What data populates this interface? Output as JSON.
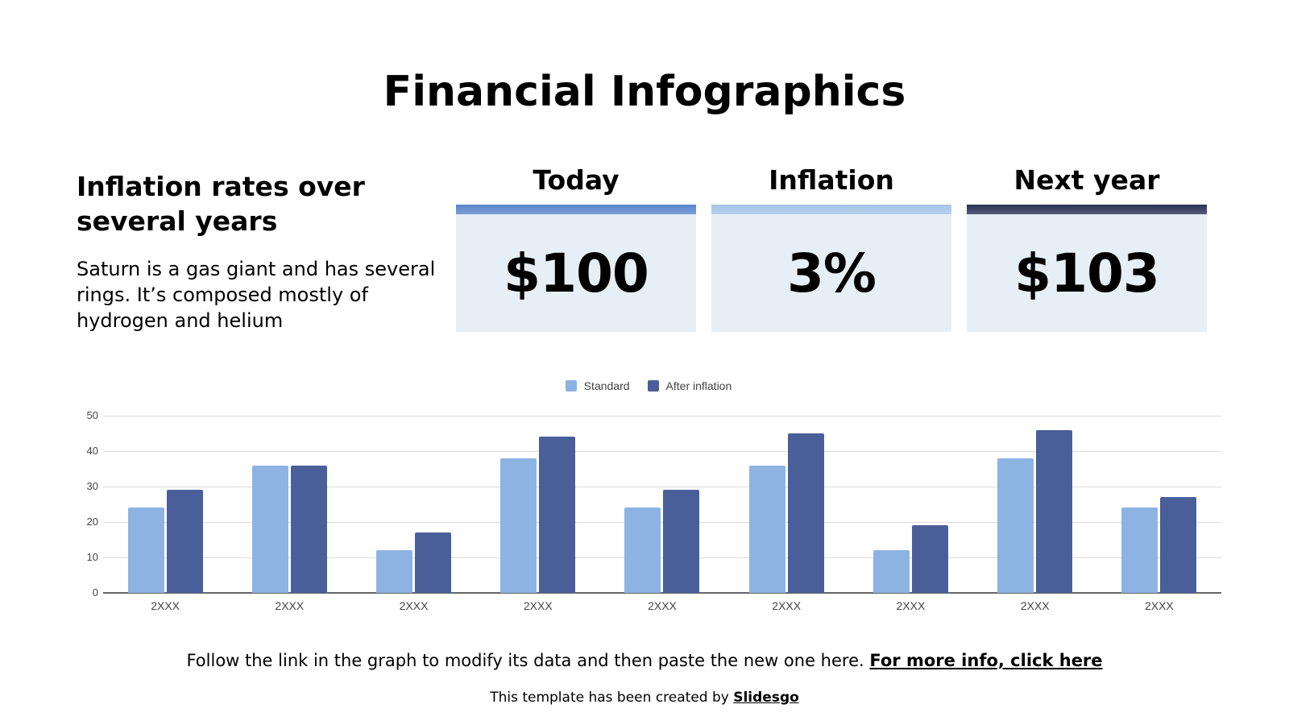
{
  "title": "Financial Infographics",
  "intro": {
    "heading": "Inflation rates over several years",
    "description": "Saturn is a gas giant and has several rings. It’s composed mostly of hydrogen and helium"
  },
  "cards": [
    {
      "label": "Today",
      "value": "$100",
      "bar_color": "#5b85cc"
    },
    {
      "label": "Inflation",
      "value": "3%",
      "bar_color": "#a7c4e8"
    },
    {
      "label": "Next year",
      "value": "$103",
      "bar_color": "#2b3358"
    }
  ],
  "chart_data": {
    "type": "bar",
    "title": "",
    "xlabel": "",
    "ylabel": "",
    "categories": [
      "2XXX",
      "2XXX",
      "2XXX",
      "2XXX",
      "2XXX",
      "2XXX",
      "2XXX",
      "2XXX",
      "2XXX"
    ],
    "series": [
      {
        "name": "Standard",
        "color": "#8db3e2",
        "values": [
          24,
          36,
          12,
          38,
          24,
          36,
          12,
          38,
          24
        ]
      },
      {
        "name": "After inflation",
        "color": "#4a5f9a",
        "values": [
          29,
          36,
          17,
          44,
          29,
          45,
          19,
          46,
          27
        ]
      }
    ],
    "ylim": [
      0,
      50
    ],
    "yticks": [
      0,
      10,
      20,
      30,
      40,
      50
    ],
    "grid": true,
    "legend_position": "top"
  },
  "footer": {
    "note": "Follow the link in the graph to modify its data and then paste the new one here.",
    "link_label": "For more info, click here",
    "credit_prefix": "This template has been created by",
    "credit_link": "Slidesgo"
  }
}
